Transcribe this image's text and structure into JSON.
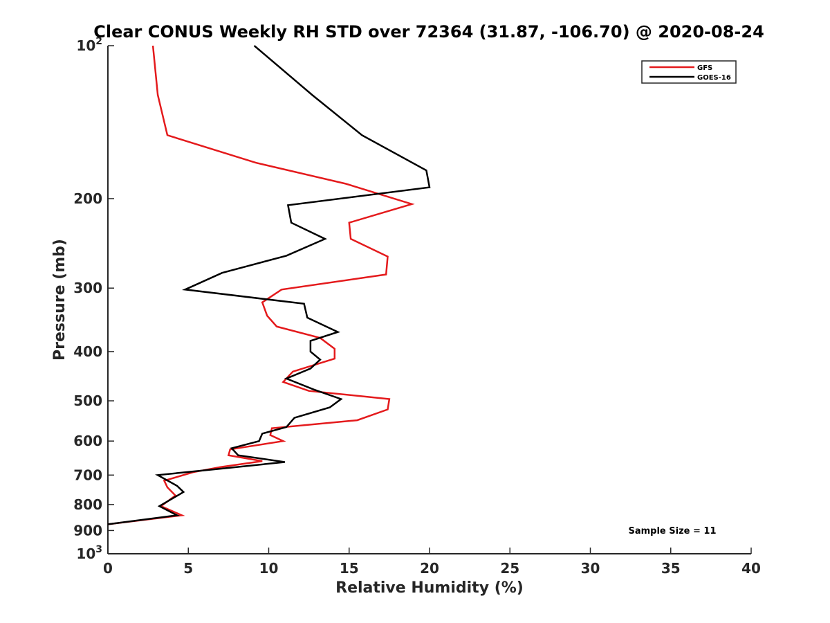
{
  "chart_data": {
    "type": "line",
    "title": "Clear CONUS Weekly RH STD over 72364 (31.87, -106.70) @ 2020-08-24",
    "xlabel": "Relative Humidity (%)",
    "ylabel": "Pressure (mb)",
    "xlim": [
      0,
      40
    ],
    "ylim": [
      100,
      1000
    ],
    "yscale": "log",
    "y_reversed": true,
    "grid": false,
    "legend_position": "top-right",
    "x_ticks": [
      0,
      5,
      10,
      15,
      20,
      25,
      30,
      35,
      40
    ],
    "x_tick_labels": [
      "0",
      "5",
      "10",
      "15",
      "20",
      "25",
      "30",
      "35",
      "40"
    ],
    "y_ticks": [
      100,
      200,
      300,
      400,
      500,
      600,
      700,
      800,
      900,
      1000
    ],
    "y_tick_labels": [
      {
        "base": "10",
        "exp": "2"
      },
      {
        "base": "200"
      },
      {
        "base": "300"
      },
      {
        "base": "400"
      },
      {
        "base": "500"
      },
      {
        "base": "600"
      },
      {
        "base": "700"
      },
      {
        "base": "800"
      },
      {
        "base": "900"
      },
      {
        "base": "10",
        "exp": "3"
      }
    ],
    "annotation": "Sample Size = 11",
    "series": [
      {
        "name": "GFS",
        "color": "#e41a1c",
        "points": [
          [
            2.8,
            100
          ],
          [
            3.1,
            125
          ],
          [
            3.7,
            150
          ],
          [
            9.2,
            170
          ],
          [
            14.8,
            187
          ],
          [
            18.9,
            205
          ],
          [
            15.0,
            223
          ],
          [
            15.1,
            240
          ],
          [
            17.4,
            260
          ],
          [
            17.3,
            282
          ],
          [
            10.8,
            302
          ],
          [
            9.6,
            320
          ],
          [
            9.9,
            340
          ],
          [
            10.5,
            357
          ],
          [
            13.2,
            376
          ],
          [
            14.1,
            395
          ],
          [
            14.1,
            413
          ],
          [
            11.5,
            438
          ],
          [
            10.9,
            459
          ],
          [
            12.5,
            478
          ],
          [
            17.5,
            496
          ],
          [
            17.4,
            520
          ],
          [
            15.5,
            546
          ],
          [
            10.2,
            566
          ],
          [
            10.1,
            584
          ],
          [
            10.9,
            600
          ],
          [
            7.6,
            623
          ],
          [
            7.5,
            640
          ],
          [
            9.6,
            657
          ],
          [
            7.0,
            675
          ],
          [
            5.3,
            691
          ],
          [
            3.5,
            718
          ],
          [
            3.7,
            740
          ],
          [
            4.2,
            768
          ],
          [
            3.3,
            806
          ],
          [
            4.6,
            840
          ],
          [
            0,
            875
          ]
        ]
      },
      {
        "name": "GOES-16",
        "color": "#000000",
        "points": [
          [
            9.1,
            100
          ],
          [
            12.7,
            125
          ],
          [
            15.8,
            150
          ],
          [
            19.8,
            176
          ],
          [
            20.0,
            190
          ],
          [
            11.2,
            206
          ],
          [
            11.4,
            223
          ],
          [
            13.5,
            240
          ],
          [
            11.1,
            259
          ],
          [
            7.1,
            280
          ],
          [
            4.8,
            302
          ],
          [
            12.2,
            322
          ],
          [
            12.4,
            343
          ],
          [
            14.3,
            366
          ],
          [
            12.6,
            381
          ],
          [
            12.6,
            400
          ],
          [
            13.2,
            415
          ],
          [
            12.6,
            432
          ],
          [
            11.1,
            452
          ],
          [
            12.8,
            475
          ],
          [
            14.5,
            496
          ],
          [
            13.8,
            515
          ],
          [
            11.6,
            540
          ],
          [
            11.1,
            563
          ],
          [
            9.6,
            580
          ],
          [
            9.4,
            600
          ],
          [
            7.7,
            620
          ],
          [
            8.1,
            640
          ],
          [
            11.0,
            660
          ],
          [
            7.0,
            680
          ],
          [
            3.1,
            700
          ],
          [
            4.3,
            735
          ],
          [
            4.7,
            756
          ],
          [
            3.2,
            806
          ],
          [
            4.3,
            840
          ],
          [
            0,
            875
          ]
        ]
      }
    ]
  }
}
